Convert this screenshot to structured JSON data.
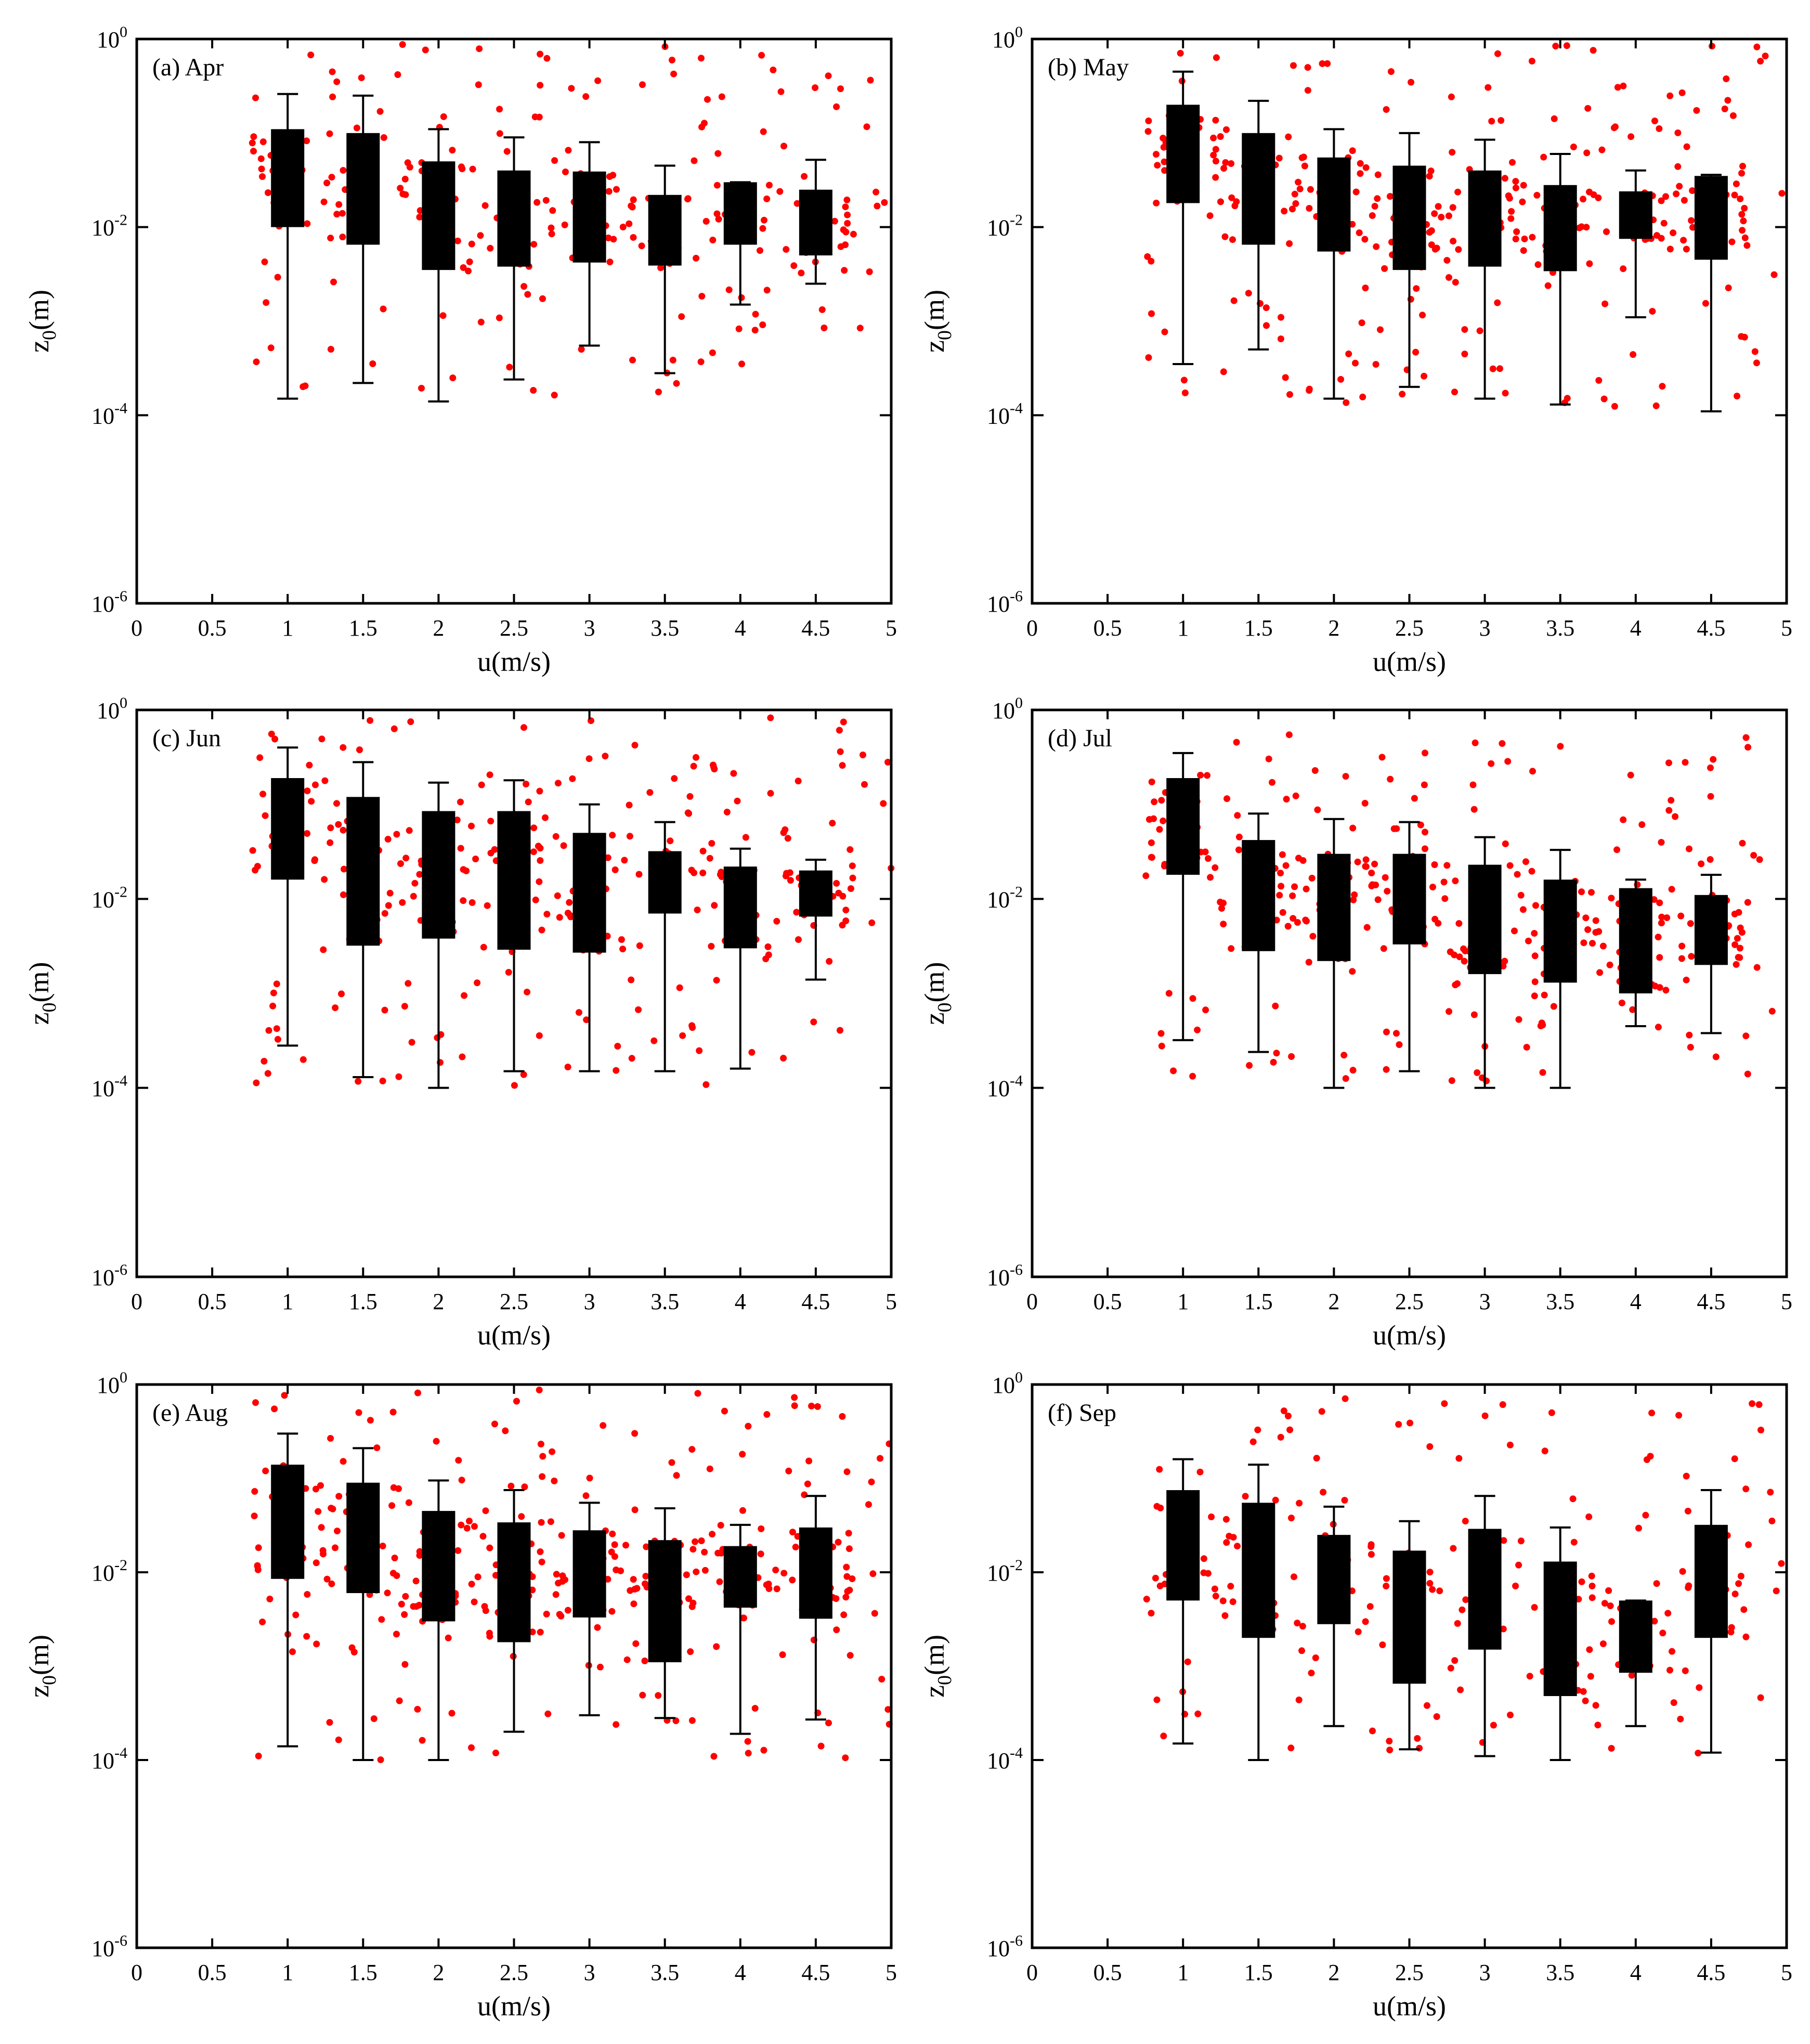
{
  "figure": {
    "description_free": true,
    "xlabel": "u(m/s)",
    "ylabel_base": "z",
    "ylabel_sub": "0",
    "ylabel_unit": "(m)"
  },
  "chart_data": [
    {
      "type": "box+scatter",
      "title": "(a) Apr",
      "xlabel": "u(m/s)",
      "ylabel": "z0(m)",
      "xlim": [
        0,
        5
      ],
      "ylim": [
        1e-06,
        1
      ],
      "yscale": "log",
      "xticks": [
        "0",
        "0.5",
        "1",
        "1.5",
        "2",
        "2.5",
        "3",
        "3.5",
        "4",
        "4.5",
        "5"
      ],
      "yticks": [
        {
          "base": "10",
          "exp": "0"
        },
        {
          "base": "10",
          "exp": "-2"
        },
        {
          "base": "10",
          "exp": "-4"
        },
        {
          "base": "10",
          "exp": "-6"
        }
      ],
      "scatter_color": "#ff0000",
      "boxes": [
        {
          "x": 1.0,
          "whisker_low": 0.00015,
          "q1": 0.01,
          "q3": 0.11,
          "whisker_high": 0.26
        },
        {
          "x": 1.5,
          "whisker_low": 0.00022,
          "q1": 0.0065,
          "q3": 0.1,
          "whisker_high": 0.25
        },
        {
          "x": 2.0,
          "whisker_low": 0.00014,
          "q1": 0.0035,
          "q3": 0.05,
          "whisker_high": 0.11
        },
        {
          "x": 2.5,
          "whisker_low": 0.00024,
          "q1": 0.0038,
          "q3": 0.04,
          "whisker_high": 0.09
        },
        {
          "x": 3.0,
          "whisker_low": 0.00055,
          "q1": 0.0042,
          "q3": 0.039,
          "whisker_high": 0.08
        },
        {
          "x": 3.5,
          "whisker_low": 0.00028,
          "q1": 0.0039,
          "q3": 0.022,
          "whisker_high": 0.045
        },
        {
          "x": 4.0,
          "whisker_low": 0.0015,
          "q1": 0.0065,
          "q3": 0.03,
          "whisker_high": 0.03
        },
        {
          "x": 4.5,
          "whisker_low": 0.0025,
          "q1": 0.005,
          "q3": 0.025,
          "whisker_high": 0.052
        }
      ],
      "scatter_seed": 11,
      "scatter_n_per_bin": 32,
      "scatter_range": [
        0.00015,
        0.9
      ]
    },
    {
      "type": "box+scatter",
      "title": "(b) May",
      "xlabel": "u(m/s)",
      "ylabel": "z0(m)",
      "xlim": [
        0,
        5
      ],
      "ylim": [
        1e-06,
        1
      ],
      "yscale": "log",
      "xticks": [
        "0",
        "0.5",
        "1",
        "1.5",
        "2",
        "2.5",
        "3",
        "3.5",
        "4",
        "4.5",
        "5"
      ],
      "yticks": [
        {
          "base": "10",
          "exp": "0"
        },
        {
          "base": "10",
          "exp": "-2"
        },
        {
          "base": "10",
          "exp": "-4"
        },
        {
          "base": "10",
          "exp": "-6"
        }
      ],
      "scatter_color": "#ff0000",
      "boxes": [
        {
          "x": 1.0,
          "whisker_low": 0.00035,
          "q1": 0.018,
          "q3": 0.2,
          "whisker_high": 0.45
        },
        {
          "x": 1.5,
          "whisker_low": 0.0005,
          "q1": 0.0065,
          "q3": 0.1,
          "whisker_high": 0.22
        },
        {
          "x": 2.0,
          "whisker_low": 0.00015,
          "q1": 0.0055,
          "q3": 0.055,
          "whisker_high": 0.11
        },
        {
          "x": 2.5,
          "whisker_low": 0.0002,
          "q1": 0.0035,
          "q3": 0.045,
          "whisker_high": 0.1
        },
        {
          "x": 3.0,
          "whisker_low": 0.00015,
          "q1": 0.0038,
          "q3": 0.04,
          "whisker_high": 0.085
        },
        {
          "x": 3.5,
          "whisker_low": 0.00013,
          "q1": 0.0034,
          "q3": 0.028,
          "whisker_high": 0.06
        },
        {
          "x": 4.0,
          "whisker_low": 0.0011,
          "q1": 0.0075,
          "q3": 0.024,
          "whisker_high": 0.04
        },
        {
          "x": 4.5,
          "whisker_low": 0.00011,
          "q1": 0.0045,
          "q3": 0.035,
          "whisker_high": 0.036
        }
      ],
      "scatter_seed": 23,
      "scatter_n_per_bin": 40,
      "scatter_range": [
        0.00012,
        0.9
      ]
    },
    {
      "type": "box+scatter",
      "title": "(c) Jun",
      "xlabel": "u(m/s)",
      "ylabel": "z0(m)",
      "xlim": [
        0,
        5
      ],
      "ylim": [
        1e-06,
        1
      ],
      "yscale": "log",
      "xticks": [
        "0",
        "0.5",
        "1",
        "1.5",
        "2",
        "2.5",
        "3",
        "3.5",
        "4",
        "4.5",
        "5"
      ],
      "yticks": [
        {
          "base": "10",
          "exp": "0"
        },
        {
          "base": "10",
          "exp": "-2"
        },
        {
          "base": "10",
          "exp": "-4"
        },
        {
          "base": "10",
          "exp": "-6"
        }
      ],
      "scatter_color": "#ff0000",
      "boxes": [
        {
          "x": 1.0,
          "whisker_low": 0.00028,
          "q1": 0.016,
          "q3": 0.19,
          "whisker_high": 0.4
        },
        {
          "x": 1.5,
          "whisker_low": 0.00013,
          "q1": 0.0032,
          "q3": 0.12,
          "whisker_high": 0.28
        },
        {
          "x": 2.0,
          "whisker_low": 0.0001,
          "q1": 0.0038,
          "q3": 0.085,
          "whisker_high": 0.17
        },
        {
          "x": 2.5,
          "whisker_low": 0.00015,
          "q1": 0.0029,
          "q3": 0.085,
          "whisker_high": 0.18
        },
        {
          "x": 3.0,
          "whisker_low": 0.00015,
          "q1": 0.0027,
          "q3": 0.05,
          "whisker_high": 0.1
        },
        {
          "x": 3.5,
          "whisker_low": 0.00015,
          "q1": 0.007,
          "q3": 0.032,
          "whisker_high": 0.065
        },
        {
          "x": 4.0,
          "whisker_low": 0.00016,
          "q1": 0.003,
          "q3": 0.022,
          "whisker_high": 0.034
        },
        {
          "x": 4.5,
          "whisker_low": 0.0014,
          "q1": 0.0065,
          "q3": 0.02,
          "whisker_high": 0.026
        }
      ],
      "scatter_seed": 37,
      "scatter_n_per_bin": 38,
      "scatter_range": [
        0.0001,
        0.9
      ]
    },
    {
      "type": "box+scatter",
      "title": "(d) Jul",
      "xlabel": "u(m/s)",
      "ylabel": "z0(m)",
      "xlim": [
        0,
        5
      ],
      "ylim": [
        1e-06,
        1
      ],
      "yscale": "log",
      "xticks": [
        "0",
        "0.5",
        "1",
        "1.5",
        "2",
        "2.5",
        "3",
        "3.5",
        "4",
        "4.5",
        "5"
      ],
      "yticks": [
        {
          "base": "10",
          "exp": "0"
        },
        {
          "base": "10",
          "exp": "-2"
        },
        {
          "base": "10",
          "exp": "-4"
        },
        {
          "base": "10",
          "exp": "-6"
        }
      ],
      "scatter_color": "#ff0000",
      "boxes": [
        {
          "x": 1.0,
          "whisker_low": 0.00032,
          "q1": 0.018,
          "q3": 0.19,
          "whisker_high": 0.35
        },
        {
          "x": 1.5,
          "whisker_low": 0.00024,
          "q1": 0.0028,
          "q3": 0.042,
          "whisker_high": 0.08
        },
        {
          "x": 2.0,
          "whisker_low": 0.0001,
          "q1": 0.0022,
          "q3": 0.03,
          "whisker_high": 0.07
        },
        {
          "x": 2.5,
          "whisker_low": 0.00015,
          "q1": 0.0033,
          "q3": 0.03,
          "whisker_high": 0.065
        },
        {
          "x": 3.0,
          "whisker_low": 0.0001,
          "q1": 0.0016,
          "q3": 0.023,
          "whisker_high": 0.045
        },
        {
          "x": 3.5,
          "whisker_low": 0.0001,
          "q1": 0.0013,
          "q3": 0.016,
          "whisker_high": 0.033
        },
        {
          "x": 4.0,
          "whisker_low": 0.00045,
          "q1": 0.001,
          "q3": 0.013,
          "whisker_high": 0.016
        },
        {
          "x": 4.5,
          "whisker_low": 0.00038,
          "q1": 0.002,
          "q3": 0.011,
          "whisker_high": 0.018
        }
      ],
      "scatter_seed": 53,
      "scatter_n_per_bin": 42,
      "scatter_range": [
        0.0001,
        0.6
      ]
    },
    {
      "type": "box+scatter",
      "title": "(e) Aug",
      "xlabel": "u(m/s)",
      "ylabel": "z0(m)",
      "xlim": [
        0,
        5
      ],
      "ylim": [
        1e-06,
        1
      ],
      "yscale": "log",
      "xticks": [
        "0",
        "0.5",
        "1",
        "1.5",
        "2",
        "2.5",
        "3",
        "3.5",
        "4",
        "4.5",
        "5"
      ],
      "yticks": [
        {
          "base": "10",
          "exp": "0"
        },
        {
          "base": "10",
          "exp": "-2"
        },
        {
          "base": "10",
          "exp": "-4"
        },
        {
          "base": "10",
          "exp": "-6"
        }
      ],
      "scatter_color": "#ff0000",
      "boxes": [
        {
          "x": 1.0,
          "whisker_low": 0.00014,
          "q1": 0.0085,
          "q3": 0.14,
          "whisker_high": 0.3
        },
        {
          "x": 1.5,
          "whisker_low": 0.0001,
          "q1": 0.006,
          "q3": 0.09,
          "whisker_high": 0.21
        },
        {
          "x": 2.0,
          "whisker_low": 0.0001,
          "q1": 0.003,
          "q3": 0.045,
          "whisker_high": 0.095
        },
        {
          "x": 2.5,
          "whisker_low": 0.0002,
          "q1": 0.0018,
          "q3": 0.034,
          "whisker_high": 0.075
        },
        {
          "x": 3.0,
          "whisker_low": 0.0003,
          "q1": 0.0033,
          "q3": 0.028,
          "whisker_high": 0.055
        },
        {
          "x": 3.5,
          "whisker_low": 0.00028,
          "q1": 0.0011,
          "q3": 0.022,
          "whisker_high": 0.048
        },
        {
          "x": 4.0,
          "whisker_low": 0.00019,
          "q1": 0.0042,
          "q3": 0.019,
          "whisker_high": 0.032
        },
        {
          "x": 4.5,
          "whisker_low": 0.00027,
          "q1": 0.0032,
          "q3": 0.03,
          "whisker_high": 0.065
        }
      ],
      "scatter_seed": 71,
      "scatter_n_per_bin": 42,
      "scatter_range": [
        0.0001,
        0.9
      ]
    },
    {
      "type": "box+scatter",
      "title": "(f) Sep",
      "xlabel": "u(m/s)",
      "ylabel": "z0(m)",
      "xlim": [
        0,
        5
      ],
      "ylim": [
        1e-06,
        1
      ],
      "yscale": "log",
      "xticks": [
        "0",
        "0.5",
        "1",
        "1.5",
        "2",
        "2.5",
        "3",
        "3.5",
        "4",
        "4.5",
        "5"
      ],
      "yticks": [
        {
          "base": "10",
          "exp": "0"
        },
        {
          "base": "10",
          "exp": "-2"
        },
        {
          "base": "10",
          "exp": "-4"
        },
        {
          "base": "10",
          "exp": "-6"
        }
      ],
      "scatter_color": "#ff0000",
      "boxes": [
        {
          "x": 1.0,
          "whisker_low": 0.00015,
          "q1": 0.005,
          "q3": 0.075,
          "whisker_high": 0.16
        },
        {
          "x": 1.5,
          "whisker_low": 0.0001,
          "q1": 0.002,
          "q3": 0.055,
          "whisker_high": 0.14
        },
        {
          "x": 2.0,
          "whisker_low": 0.00023,
          "q1": 0.0028,
          "q3": 0.025,
          "whisker_high": 0.05
        },
        {
          "x": 2.5,
          "whisker_low": 0.00013,
          "q1": 0.00065,
          "q3": 0.017,
          "whisker_high": 0.035
        },
        {
          "x": 3.0,
          "whisker_low": 0.00011,
          "q1": 0.0015,
          "q3": 0.029,
          "whisker_high": 0.065
        },
        {
          "x": 3.5,
          "whisker_low": 0.0001,
          "q1": 0.00048,
          "q3": 0.013,
          "whisker_high": 0.03
        },
        {
          "x": 4.0,
          "whisker_low": 0.00023,
          "q1": 0.00085,
          "q3": 0.005,
          "whisker_high": 0.005
        },
        {
          "x": 4.5,
          "whisker_low": 0.00012,
          "q1": 0.002,
          "q3": 0.032,
          "whisker_high": 0.075
        }
      ],
      "scatter_seed": 97,
      "scatter_n_per_bin": 26,
      "scatter_range": [
        0.0001,
        0.8
      ]
    }
  ]
}
